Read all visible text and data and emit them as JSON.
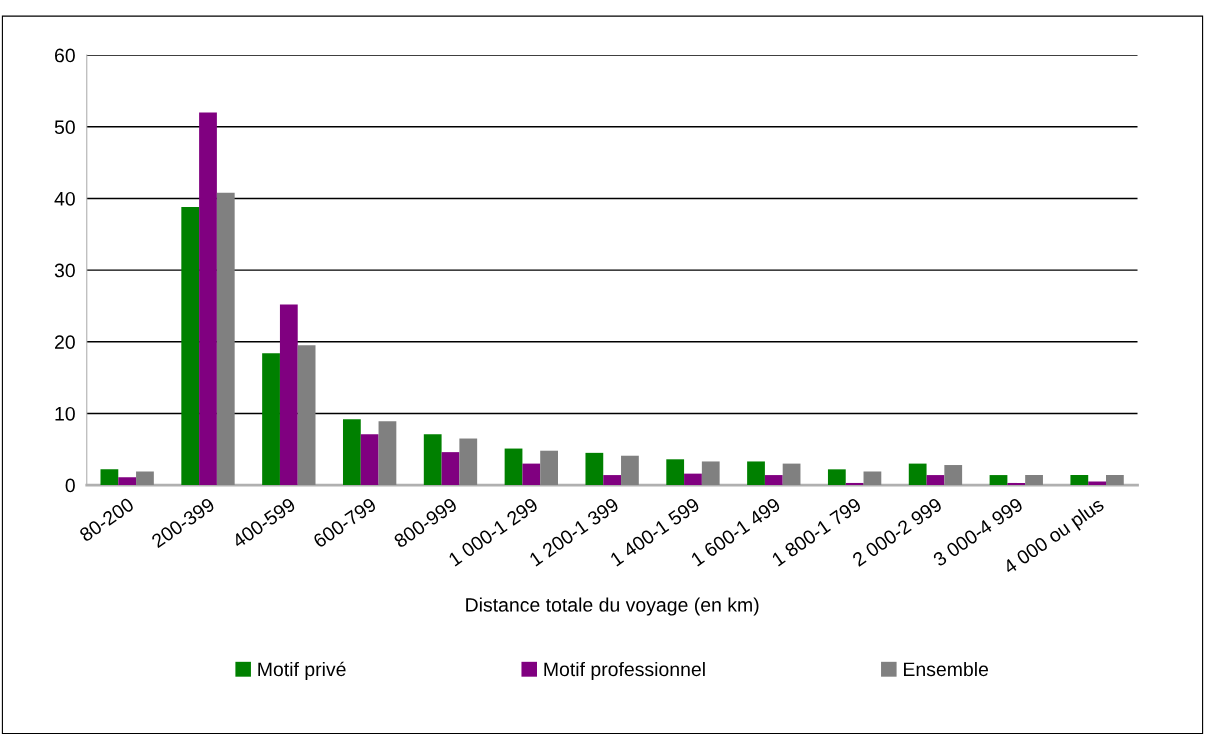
{
  "chart_data": {
    "type": "bar",
    "xlabel": "Distance totale du voyage (en km)",
    "categories": [
      "80-200",
      "200-399",
      "400-599",
      "600-799",
      "800-999",
      "1 000-1 299",
      "1 200-1 399",
      "1 400-1 599",
      "1 600-1 499",
      "1 800-1 799",
      "2 000-2 999",
      "3 000-4 999",
      "4 000 ou plus"
    ],
    "series": [
      {
        "name": "Motif privé",
        "color": "#008000",
        "values": [
          2.2,
          38.8,
          18.4,
          9.2,
          7.1,
          5.1,
          4.5,
          3.6,
          3.3,
          2.2,
          3.0,
          1.4,
          1.4
        ]
      },
      {
        "name": "Motif professionnel",
        "color": "#800080",
        "values": [
          1.1,
          52.0,
          25.2,
          7.1,
          4.6,
          3.0,
          1.4,
          1.6,
          1.4,
          0.3,
          1.4,
          0.3,
          0.5
        ]
      },
      {
        "name": "Ensemble",
        "color": "#808080",
        "values": [
          1.9,
          40.8,
          19.5,
          8.9,
          6.5,
          4.8,
          4.1,
          3.3,
          3.0,
          1.9,
          2.8,
          1.4,
          1.4
        ]
      }
    ],
    "ylim": [
      0,
      60
    ],
    "yticks": [
      0,
      10,
      20,
      30,
      40,
      50,
      60
    ],
    "grid": "y",
    "legend": "bottom"
  }
}
